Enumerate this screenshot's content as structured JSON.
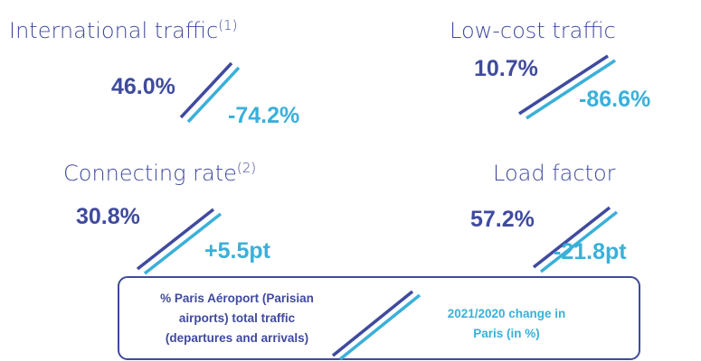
{
  "blocks": [
    {
      "title": "International traffic",
      "note": "(1)",
      "value": "46.0%",
      "change": "-74.2%"
    },
    {
      "title": "Low-cost traffic",
      "value": "10.7%",
      "change": "-86.6%"
    },
    {
      "title": "Connecting rate",
      "note": "(2)",
      "value": "30.8%",
      "change": "+5.5pt"
    },
    {
      "title": "Load factor",
      "value": "57.2%",
      "change": "-21.8pt"
    }
  ],
  "legend": {
    "left": [
      "% Paris Aéroport (Parisian",
      "airports) total traffic",
      "(departures and arrivals)"
    ],
    "right": [
      "2021/2020 change in",
      "Paris (in %)"
    ]
  }
}
